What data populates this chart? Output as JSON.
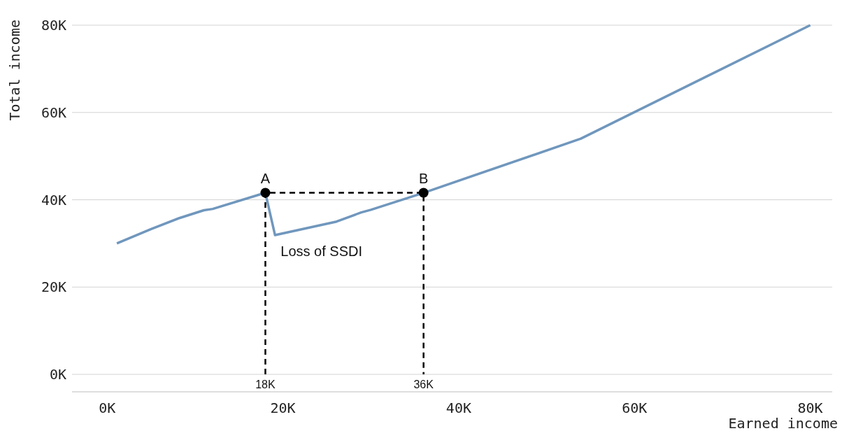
{
  "chart_data": {
    "type": "line",
    "xlabel": "Earned income",
    "ylabel": "Total income",
    "xlim": [
      -4,
      82.5
    ],
    "ylim": [
      -4,
      80
    ],
    "xticks": [
      {
        "value": 0,
        "label": "0K"
      },
      {
        "value": 20,
        "label": "20K"
      },
      {
        "value": 40,
        "label": "40K"
      },
      {
        "value": 60,
        "label": "60K"
      },
      {
        "value": 80,
        "label": "80K"
      }
    ],
    "yticks": [
      {
        "value": 0,
        "label": "0K"
      },
      {
        "value": 20,
        "label": "20K"
      },
      {
        "value": 40,
        "label": "40K"
      },
      {
        "value": 60,
        "label": "60K"
      },
      {
        "value": 80,
        "label": "80K"
      }
    ],
    "grid": "y",
    "series": [
      {
        "color": "#7097bd",
        "x": [
          1.1,
          5,
          8.2,
          11,
          12,
          18,
          19.1,
          26.1,
          28.9,
          30,
          36,
          53.9,
          80
        ],
        "values": [
          30,
          33.3,
          35.8,
          37.6,
          37.9,
          41.6,
          31.9,
          35,
          37.1,
          37.7,
          41.6,
          54,
          80
        ]
      },
      {
        "type": "line",
        "color": "#000000",
        "line_style": "dashed",
        "x": [
          18,
          18,
          36,
          36
        ],
        "values": [
          0,
          41.6,
          41.6,
          0
        ]
      },
      {
        "type": "scatter",
        "color": "#000000",
        "x": [
          18,
          36
        ],
        "values": [
          41.6,
          41.6
        ]
      }
    ],
    "annotations": [
      {
        "text": "A",
        "x": 18,
        "y": 41.6
      },
      {
        "text": "B",
        "x": 36,
        "y": 41.6
      },
      {
        "text": "18K",
        "x": 18,
        "y": 0
      },
      {
        "text": "36K",
        "x": 36,
        "y": 0
      },
      {
        "text": "Loss of SSDI",
        "x": 19.1,
        "y": 31.9
      }
    ]
  }
}
